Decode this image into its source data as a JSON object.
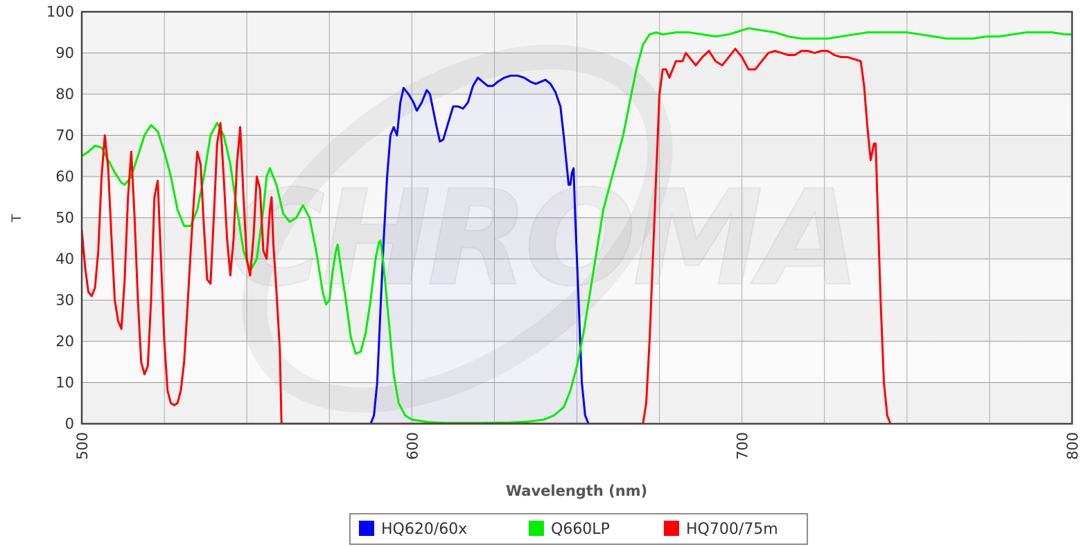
{
  "chart_data": {
    "type": "line",
    "title": "",
    "xlabel": "Wavelength (nm)",
    "ylabel": "T",
    "xlim": [
      500,
      800
    ],
    "ylim": [
      0,
      100
    ],
    "x_ticks": [
      "500",
      "600",
      "700",
      "800"
    ],
    "x_tick_values": [
      500,
      600,
      700,
      800
    ],
    "y_ticks": [
      "0",
      "10",
      "20",
      "30",
      "40",
      "50",
      "60",
      "70",
      "80",
      "90",
      "100"
    ],
    "y_tick_values": [
      0,
      10,
      20,
      30,
      40,
      50,
      60,
      70,
      80,
      90,
      100
    ],
    "grid": true,
    "legend_position": "bottom",
    "watermark": "CHROMA",
    "series": [
      {
        "name": "HQ620/60x",
        "color": "#0000ff",
        "points": [
          [
            587.5,
            0
          ],
          [
            588.5,
            2
          ],
          [
            589.5,
            10
          ],
          [
            590.5,
            28
          ],
          [
            591.5,
            45
          ],
          [
            592.5,
            60
          ],
          [
            593.5,
            70
          ],
          [
            594.5,
            72
          ],
          [
            595.5,
            70
          ],
          [
            596.5,
            78
          ],
          [
            597.5,
            81.5
          ],
          [
            599,
            80
          ],
          [
            600.5,
            78
          ],
          [
            601.5,
            76
          ],
          [
            603,
            78
          ],
          [
            604.5,
            81
          ],
          [
            605.5,
            80
          ],
          [
            606.5,
            76
          ],
          [
            607.5,
            72
          ],
          [
            608.5,
            68.5
          ],
          [
            609.5,
            69
          ],
          [
            611,
            73
          ],
          [
            612.5,
            77
          ],
          [
            614,
            77
          ],
          [
            615.5,
            76.5
          ],
          [
            617,
            78
          ],
          [
            618.5,
            82
          ],
          [
            620,
            84
          ],
          [
            621.5,
            83
          ],
          [
            623,
            82
          ],
          [
            624.5,
            82
          ],
          [
            626,
            83
          ],
          [
            628,
            84
          ],
          [
            630,
            84.5
          ],
          [
            632,
            84.5
          ],
          [
            634,
            84
          ],
          [
            636,
            83
          ],
          [
            637.5,
            82.5
          ],
          [
            639,
            83
          ],
          [
            640.5,
            83.5
          ],
          [
            642,
            82.5
          ],
          [
            643.5,
            80.5
          ],
          [
            645,
            77
          ],
          [
            646,
            70
          ],
          [
            647,
            62
          ],
          [
            647.5,
            58
          ],
          [
            648,
            58
          ],
          [
            648.5,
            61
          ],
          [
            649,
            62
          ],
          [
            649.5,
            50
          ],
          [
            650.5,
            30
          ],
          [
            651.5,
            10
          ],
          [
            652.5,
            2
          ],
          [
            653.5,
            0
          ]
        ]
      },
      {
        "name": "Q660LP",
        "color": "#00ee00",
        "points": [
          [
            500,
            65
          ],
          [
            502,
            66
          ],
          [
            504,
            67.5
          ],
          [
            506,
            67
          ],
          [
            508,
            64
          ],
          [
            510,
            61
          ],
          [
            512,
            58.5
          ],
          [
            513,
            58
          ],
          [
            515,
            60
          ],
          [
            517,
            65
          ],
          [
            519,
            70
          ],
          [
            521,
            72.5
          ],
          [
            523,
            71
          ],
          [
            525,
            66
          ],
          [
            527,
            60
          ],
          [
            529,
            52
          ],
          [
            531,
            48
          ],
          [
            533,
            48
          ],
          [
            535,
            52
          ],
          [
            537,
            60
          ],
          [
            539,
            70
          ],
          [
            541,
            73
          ],
          [
            543,
            70
          ],
          [
            545,
            63
          ],
          [
            547,
            52
          ],
          [
            549,
            42
          ],
          [
            551,
            37
          ],
          [
            553,
            40
          ],
          [
            555,
            52
          ],
          [
            556,
            60
          ],
          [
            557,
            62
          ],
          [
            559,
            58
          ],
          [
            561,
            51
          ],
          [
            563,
            49
          ],
          [
            565,
            50
          ],
          [
            567,
            53
          ],
          [
            569,
            50
          ],
          [
            571,
            42
          ],
          [
            573,
            32
          ],
          [
            574,
            29
          ],
          [
            575,
            30
          ],
          [
            576,
            37
          ],
          [
            577,
            42
          ],
          [
            577.5,
            43.5
          ],
          [
            578.5,
            38
          ],
          [
            580,
            30
          ],
          [
            581.5,
            21
          ],
          [
            583,
            17
          ],
          [
            584.5,
            17.5
          ],
          [
            586,
            22
          ],
          [
            587.5,
            30
          ],
          [
            589,
            40
          ],
          [
            590,
            44
          ],
          [
            590.5,
            44.5
          ],
          [
            591.5,
            38
          ],
          [
            593,
            25
          ],
          [
            594.5,
            12
          ],
          [
            596,
            5
          ],
          [
            598,
            2
          ],
          [
            600,
            1
          ],
          [
            605,
            0.4
          ],
          [
            610,
            0.2
          ],
          [
            620,
            0.2
          ],
          [
            630,
            0.3
          ],
          [
            635,
            0.5
          ],
          [
            640,
            1
          ],
          [
            643,
            2
          ],
          [
            646,
            4
          ],
          [
            648,
            8
          ],
          [
            650,
            14
          ],
          [
            652,
            22
          ],
          [
            654,
            32
          ],
          [
            656,
            42
          ],
          [
            658,
            52
          ],
          [
            660,
            58
          ],
          [
            662,
            64
          ],
          [
            664,
            70
          ],
          [
            666,
            78
          ],
          [
            668,
            86
          ],
          [
            670,
            92
          ],
          [
            672,
            94.5
          ],
          [
            674,
            95
          ],
          [
            676,
            94.5
          ],
          [
            680,
            95
          ],
          [
            684,
            95
          ],
          [
            688,
            94.5
          ],
          [
            692,
            94
          ],
          [
            696,
            94.5
          ],
          [
            700,
            95.5
          ],
          [
            702,
            96
          ],
          [
            706,
            95.5
          ],
          [
            710,
            95
          ],
          [
            714,
            94
          ],
          [
            718,
            93.5
          ],
          [
            722,
            93.5
          ],
          [
            726,
            93.5
          ],
          [
            730,
            94
          ],
          [
            734,
            94.5
          ],
          [
            738,
            95
          ],
          [
            742,
            95
          ],
          [
            746,
            95
          ],
          [
            750,
            95
          ],
          [
            754,
            94.5
          ],
          [
            758,
            94
          ],
          [
            762,
            93.5
          ],
          [
            766,
            93.5
          ],
          [
            770,
            93.5
          ],
          [
            774,
            94
          ],
          [
            778,
            94
          ],
          [
            782,
            94.5
          ],
          [
            786,
            95
          ],
          [
            790,
            95
          ],
          [
            794,
            95
          ],
          [
            798,
            94.5
          ],
          [
            800,
            94.5
          ]
        ]
      },
      {
        "name": "HQ700/75m",
        "color": "#ff0000",
        "points": [
          [
            500,
            47
          ],
          [
            501,
            38
          ],
          [
            502,
            32
          ],
          [
            503,
            31
          ],
          [
            504,
            33
          ],
          [
            505,
            42
          ],
          [
            506,
            60
          ],
          [
            507,
            70
          ],
          [
            508,
            62
          ],
          [
            509,
            45
          ],
          [
            510,
            30
          ],
          [
            511,
            25
          ],
          [
            512,
            23
          ],
          [
            513,
            35
          ],
          [
            514,
            55
          ],
          [
            515,
            66
          ],
          [
            516,
            50
          ],
          [
            517,
            30
          ],
          [
            518,
            15
          ],
          [
            519,
            12
          ],
          [
            520,
            14
          ],
          [
            521,
            30
          ],
          [
            522,
            55
          ],
          [
            523,
            59
          ],
          [
            524,
            40
          ],
          [
            525,
            20
          ],
          [
            526,
            8
          ],
          [
            527,
            5
          ],
          [
            528,
            4.5
          ],
          [
            529,
            5
          ],
          [
            530,
            8
          ],
          [
            531,
            15
          ],
          [
            532,
            28
          ],
          [
            533,
            42
          ],
          [
            534,
            55
          ],
          [
            535,
            66
          ],
          [
            536,
            63
          ],
          [
            537,
            48
          ],
          [
            538,
            35
          ],
          [
            539,
            34
          ],
          [
            540,
            50
          ],
          [
            541,
            68
          ],
          [
            542,
            73
          ],
          [
            543,
            60
          ],
          [
            544,
            45
          ],
          [
            545,
            36
          ],
          [
            546,
            45
          ],
          [
            547,
            63
          ],
          [
            548,
            72
          ],
          [
            549,
            55
          ],
          [
            550,
            40
          ],
          [
            551,
            36
          ],
          [
            552,
            45
          ],
          [
            553,
            60
          ],
          [
            554,
            57
          ],
          [
            555,
            42
          ],
          [
            556,
            40
          ],
          [
            557,
            52
          ],
          [
            557.5,
            55
          ],
          [
            558,
            44
          ],
          [
            559,
            32
          ],
          [
            560,
            18
          ],
          [
            560.5,
            0
          ],
          [
            670,
            0
          ],
          [
            671,
            5
          ],
          [
            672,
            20
          ],
          [
            673,
            40
          ],
          [
            674,
            60
          ],
          [
            675,
            80
          ],
          [
            676,
            86
          ],
          [
            677,
            86
          ],
          [
            678,
            84
          ],
          [
            679,
            86
          ],
          [
            680,
            88
          ],
          [
            682,
            88
          ],
          [
            683,
            90
          ],
          [
            684,
            89
          ],
          [
            686,
            87
          ],
          [
            688,
            89
          ],
          [
            690,
            90.5
          ],
          [
            692,
            88
          ],
          [
            694,
            87
          ],
          [
            696,
            89
          ],
          [
            698,
            91
          ],
          [
            700,
            89
          ],
          [
            702,
            86
          ],
          [
            704,
            86
          ],
          [
            706,
            88
          ],
          [
            708,
            90
          ],
          [
            710,
            90.5
          ],
          [
            712,
            90
          ],
          [
            714,
            89.5
          ],
          [
            716,
            89.5
          ],
          [
            718,
            90.5
          ],
          [
            720,
            90.5
          ],
          [
            722,
            90
          ],
          [
            724,
            90.5
          ],
          [
            726,
            90.5
          ],
          [
            728,
            89.5
          ],
          [
            730,
            89
          ],
          [
            732,
            89
          ],
          [
            734,
            88.5
          ],
          [
            736,
            88
          ],
          [
            737,
            82
          ],
          [
            738,
            72
          ],
          [
            739,
            64
          ],
          [
            740,
            68
          ],
          [
            740.5,
            68
          ],
          [
            741,
            55
          ],
          [
            742,
            30
          ],
          [
            743,
            10
          ],
          [
            744,
            2
          ],
          [
            745,
            0
          ]
        ]
      }
    ]
  }
}
